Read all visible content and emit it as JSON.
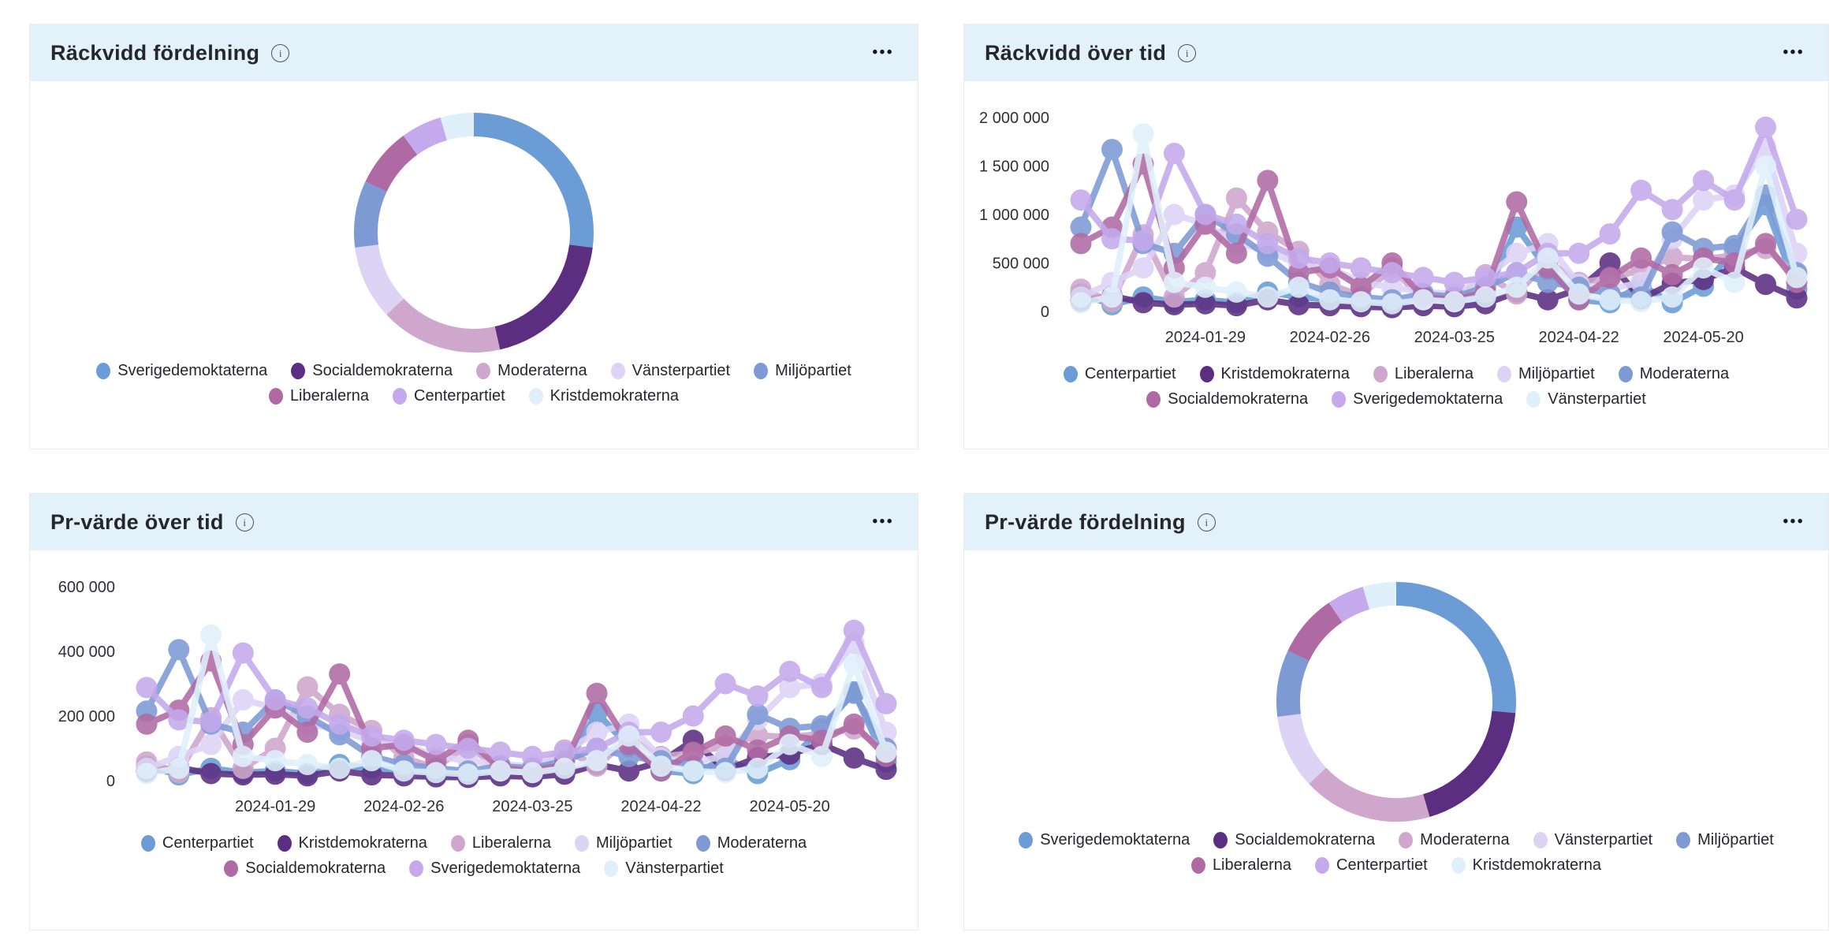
{
  "ui": {
    "info_glyph": "i",
    "menu_glyph": "•••",
    "header_bg": "#E3F1FB",
    "panel_border": "#ECECEC",
    "title_color": "#26262E",
    "axis_text_color": "#2F2F38"
  },
  "panels": [
    {
      "id": "reach-distribution",
      "title": "Räckvidd fördelning",
      "legend_rows": [
        [
          0,
          1,
          2,
          3,
          4
        ],
        [
          5,
          6,
          7
        ]
      ],
      "chart_data": {
        "type": "pie",
        "donut": true,
        "start_angle_deg": 0,
        "slices": [
          {
            "label": "Sverigedemoktaterna",
            "value_pct": 27.0,
            "color": "#6B9CD6"
          },
          {
            "label": "Socialdemokraterna",
            "value_pct": 19.5,
            "color": "#5C2E82"
          },
          {
            "label": "Moderaterna",
            "value_pct": 16.5,
            "color": "#CFA7CC"
          },
          {
            "label": "Vänsterpartiet",
            "value_pct": 10.0,
            "color": "#DCD3F5"
          },
          {
            "label": "Miljöpartiet",
            "value_pct": 9.0,
            "color": "#7E9AD5"
          },
          {
            "label": "Liberalerna",
            "value_pct": 8.0,
            "color": "#B06AA3"
          },
          {
            "label": "Centerpartiet",
            "value_pct": 5.5,
            "color": "#C4AAEC"
          },
          {
            "label": "Kristdemokraterna",
            "value_pct": 4.5,
            "color": "#E0F0FB"
          }
        ]
      }
    },
    {
      "id": "reach-over-time",
      "title": "Räckvidd över tid",
      "legend_rows": [
        [
          0,
          1,
          2,
          3,
          4
        ],
        [
          5,
          6,
          7
        ]
      ],
      "chart_data": {
        "type": "line",
        "n_points": 24,
        "ylim": [
          0,
          2000000
        ],
        "y_ticks": [
          {
            "value": 0,
            "label": "0"
          },
          {
            "value": 500000,
            "label": "500 000"
          },
          {
            "value": 1000000,
            "label": "1 000 000"
          },
          {
            "value": 1500000,
            "label": "1 500 000"
          },
          {
            "value": 2000000,
            "label": "2 000 000"
          }
        ],
        "x_tick_indices": [
          4,
          8,
          12,
          16,
          20
        ],
        "x_tick_labels": [
          "2024-01-29",
          "2024-02-26",
          "2024-03-25",
          "2024-04-22",
          "2024-05-20"
        ],
        "series": [
          {
            "name": "Centerpartiet",
            "color": "#6B9CD6",
            "values": [
              180000,
              70000,
              150000,
              100000,
              120000,
              90000,
              200000,
              150000,
              120000,
              90000,
              80000,
              110000,
              90000,
              150000,
              870000,
              430000,
              120000,
              90000,
              270000,
              90000,
              260000,
              640000,
              1100000,
              230000
            ]
          },
          {
            "name": "Kristdemokraterna",
            "color": "#5C2E82",
            "values": [
              110000,
              160000,
              90000,
              70000,
              80000,
              60000,
              120000,
              70000,
              60000,
              50000,
              40000,
              60000,
              50000,
              80000,
              200000,
              120000,
              230000,
              500000,
              130000,
              290000,
              330000,
              450000,
              280000,
              140000
            ]
          },
          {
            "name": "Liberalerna",
            "color": "#CFA7CC",
            "values": [
              230000,
              100000,
              790000,
              150000,
              400000,
              1170000,
              820000,
              620000,
              280000,
              160000,
              450000,
              120000,
              100000,
              380000,
              180000,
              520000,
              300000,
              340000,
              430000,
              560000,
              540000,
              580000,
              650000,
              380000
            ]
          },
          {
            "name": "Miljöpartiet",
            "color": "#DCD3F5",
            "values": [
              150000,
              300000,
              450000,
              1000000,
              900000,
              700000,
              630000,
              480000,
              450000,
              300000,
              250000,
              200000,
              180000,
              350000,
              600000,
              700000,
              280000,
              230000,
              300000,
              750000,
              1150000,
              1200000,
              1700000,
              600000
            ]
          },
          {
            "name": "Moderaterna",
            "color": "#7E9AD5",
            "values": [
              870000,
              1670000,
              700000,
              600000,
              1000000,
              800000,
              570000,
              300000,
              200000,
              150000,
              120000,
              180000,
              150000,
              250000,
              400000,
              300000,
              250000,
              180000,
              150000,
              820000,
              650000,
              680000,
              1200000,
              400000
            ]
          },
          {
            "name": "Socialdemokraterna",
            "color": "#B06AA3",
            "values": [
              700000,
              870000,
              1520000,
              450000,
              900000,
              600000,
              1350000,
              400000,
              450000,
              250000,
              500000,
              150000,
              120000,
              200000,
              1130000,
              450000,
              120000,
              350000,
              550000,
              380000,
              550000,
              500000,
              700000,
              300000
            ]
          },
          {
            "name": "Sverigedemoktaterna",
            "color": "#C4AAEC",
            "values": [
              1150000,
              750000,
              730000,
              1630000,
              1000000,
              900000,
              700000,
              550000,
              500000,
              450000,
              400000,
              350000,
              300000,
              350000,
              400000,
              600000,
              600000,
              800000,
              1250000,
              1050000,
              1350000,
              1150000,
              1900000,
              950000
            ]
          },
          {
            "name": "Vänsterpartiet",
            "color": "#E0F0FB",
            "values": [
              90000,
              150000,
              1830000,
              300000,
              250000,
              200000,
              150000,
              250000,
              120000,
              100000,
              80000,
              120000,
              100000,
              150000,
              250000,
              550000,
              180000,
              120000,
              100000,
              150000,
              450000,
              300000,
              1500000,
              350000
            ]
          }
        ]
      }
    },
    {
      "id": "pr-over-time",
      "title": "Pr-värde över tid",
      "legend_rows": [
        [
          0,
          1,
          2,
          3,
          4
        ],
        [
          5,
          6,
          7
        ]
      ],
      "chart_data": {
        "type": "line",
        "n_points": 24,
        "ylim": [
          0,
          600000
        ],
        "y_ticks": [
          {
            "value": 0,
            "label": "0"
          },
          {
            "value": 200000,
            "label": "200 000"
          },
          {
            "value": 400000,
            "label": "400 000"
          },
          {
            "value": 600000,
            "label": "600 000"
          }
        ],
        "x_tick_indices": [
          4,
          8,
          12,
          16,
          20
        ],
        "x_tick_labels": [
          "2024-01-29",
          "2024-02-26",
          "2024-03-25",
          "2024-04-22",
          "2024-05-20"
        ],
        "series": [
          {
            "name": "Centerpartiet",
            "color": "#6B9CD6",
            "values": [
              45000,
              18000,
              38000,
              25000,
              30000,
              22000,
              50000,
              38000,
              30000,
              22000,
              20000,
              28000,
              22000,
              38000,
              210000,
              105000,
              30000,
              22000,
              68000,
              22000,
              65000,
              160000,
              275000,
              58000
            ]
          },
          {
            "name": "Kristdemokraterna",
            "color": "#5C2E82",
            "values": [
              28000,
              40000,
              22000,
              18000,
              20000,
              15000,
              30000,
              18000,
              15000,
              12000,
              10000,
              15000,
              12000,
              20000,
              50000,
              30000,
              58000,
              125000,
              32000,
              72000,
              82000,
              112000,
              70000,
              35000
            ]
          },
          {
            "name": "Liberalerna",
            "color": "#CFA7CC",
            "values": [
              58000,
              25000,
              195000,
              38000,
              100000,
              290000,
              205000,
              155000,
              70000,
              40000,
              112000,
              30000,
              25000,
              95000,
              45000,
              130000,
              75000,
              85000,
              108000,
              140000,
              135000,
              145000,
              160000,
              95000
            ]
          },
          {
            "name": "Miljöpartiet",
            "color": "#DCD3F5",
            "values": [
              38000,
              75000,
              112000,
              250000,
              225000,
              175000,
              158000,
              120000,
              112000,
              75000,
              62000,
              50000,
              45000,
              88000,
              150000,
              175000,
              70000,
              58000,
              75000,
              188000,
              288000,
              300000,
              425000,
              150000
            ]
          },
          {
            "name": "Moderaterna",
            "color": "#7E9AD5",
            "values": [
              215000,
              405000,
              175000,
              150000,
              250000,
              200000,
              142000,
              75000,
              50000,
              38000,
              30000,
              45000,
              38000,
              62000,
              100000,
              75000,
              62000,
              45000,
              38000,
              205000,
              162000,
              170000,
              270000,
              100000
            ]
          },
          {
            "name": "Socialdemokraterna",
            "color": "#B06AA3",
            "values": [
              175000,
              218000,
              370000,
              112000,
              225000,
              150000,
              330000,
              100000,
              112000,
              62000,
              125000,
              38000,
              30000,
              50000,
              270000,
              112000,
              30000,
              88000,
              138000,
              95000,
              138000,
              125000,
              175000,
              75000
            ]
          },
          {
            "name": "Sverigedemoktaterna",
            "color": "#C4AAEC",
            "values": [
              288000,
              188000,
              182000,
              395000,
              250000,
              225000,
              175000,
              138000,
              125000,
              112000,
              100000,
              88000,
              75000,
              88000,
              100000,
              150000,
              150000,
              200000,
              300000,
              262000,
              338000,
              288000,
              465000,
              238000
            ]
          },
          {
            "name": "Vänsterpartiet",
            "color": "#E0F0FB",
            "values": [
              22000,
              38000,
              450000,
              75000,
              62000,
              50000,
              38000,
              62000,
              30000,
              25000,
              20000,
              30000,
              25000,
              38000,
              62000,
              138000,
              45000,
              30000,
              25000,
              38000,
              112000,
              75000,
              360000,
              88000
            ]
          }
        ]
      }
    },
    {
      "id": "pr-distribution",
      "title": "Pr-värde fördelning",
      "legend_rows": [
        [
          0,
          1,
          2,
          3,
          4
        ],
        [
          5,
          6,
          7
        ]
      ],
      "chart_data": {
        "type": "pie",
        "donut": true,
        "start_angle_deg": 0,
        "slices": [
          {
            "label": "Sverigedemoktaterna",
            "value_pct": 26.5,
            "color": "#6B9CD6"
          },
          {
            "label": "Socialdemokraterna",
            "value_pct": 19.0,
            "color": "#5C2E82"
          },
          {
            "label": "Moderaterna",
            "value_pct": 17.5,
            "color": "#CFA7CC"
          },
          {
            "label": "Vänsterpartiet",
            "value_pct": 10.0,
            "color": "#DCD3F5"
          },
          {
            "label": "Miljöpartiet",
            "value_pct": 9.0,
            "color": "#7E9AD5"
          },
          {
            "label": "Liberalerna",
            "value_pct": 8.5,
            "color": "#B06AA3"
          },
          {
            "label": "Centerpartiet",
            "value_pct": 5.0,
            "color": "#C4AAEC"
          },
          {
            "label": "Kristdemokraterna",
            "value_pct": 4.5,
            "color": "#E0F0FB"
          }
        ]
      }
    }
  ]
}
